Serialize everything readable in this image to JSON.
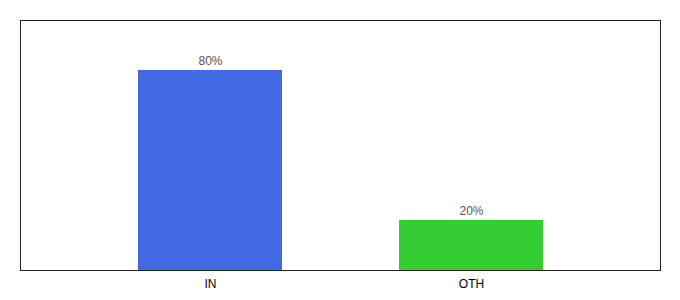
{
  "chart_data": {
    "type": "bar",
    "categories": [
      "IN",
      "OTH"
    ],
    "values": [
      80,
      20
    ],
    "value_labels": [
      "80%",
      "20%"
    ],
    "colors": [
      "#4169e1",
      "#33cc33"
    ],
    "ylim": [
      0,
      100
    ],
    "data_labels": true,
    "tick_labels": "x",
    "grid": false
  }
}
